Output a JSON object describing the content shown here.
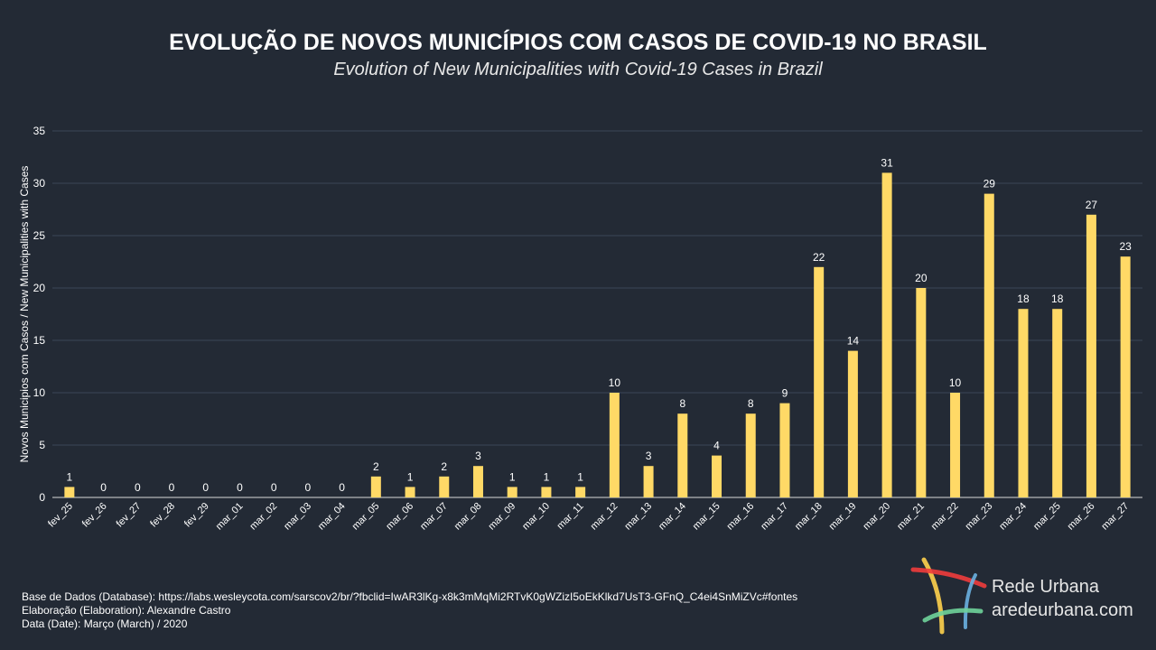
{
  "title": "EVOLUÇÃO DE NOVOS MUNICÍPIOS COM CASOS DE COVID-19 NO BRASIL",
  "subtitle": "Evolution of New Municipalities with Covid-19 Cases in Brazil",
  "chart_data": {
    "type": "bar",
    "ylabel": "Novos Municipios com Casos / New Municipalities with Cases",
    "xlabel": "",
    "ylim": [
      0,
      35
    ],
    "yticks": [
      0,
      5,
      10,
      15,
      20,
      25,
      30,
      35
    ],
    "grid": true,
    "bar_color": "#ffd966",
    "categories": [
      "fev_25",
      "fev_26",
      "fev_27",
      "fev_28",
      "fev_29",
      "mar_01",
      "mar_02",
      "mar_03",
      "mar_04",
      "mar_05",
      "mar_06",
      "mar_07",
      "mar_08",
      "mar_09",
      "mar_10",
      "mar_11",
      "mar_12",
      "mar_13",
      "mar_14",
      "mar_15",
      "mar_16",
      "mar_17",
      "mar_18",
      "mar_19",
      "mar_20",
      "mar_21",
      "mar_22",
      "mar_23",
      "mar_24",
      "mar_25",
      "mar_26",
      "mar_27"
    ],
    "values": [
      1,
      0,
      0,
      0,
      0,
      0,
      0,
      0,
      0,
      2,
      1,
      2,
      3,
      1,
      1,
      1,
      10,
      3,
      8,
      4,
      8,
      9,
      22,
      14,
      31,
      20,
      10,
      29,
      18,
      18,
      27,
      23
    ]
  },
  "footer": {
    "database": "Base de Dados (Database):  https://labs.wesleycota.com/sarscov2/br/?fbclid=IwAR3lKg-x8k3mMqMi2RTvK0gWZizI5oEkKlkd7UsT3-GFnQ_C4ei4SnMiZVc#fontes",
    "elaboration": "Elaboração (Elaboration):  Alexandre Castro",
    "date": "Data (Date): Março (March) / 2020"
  },
  "logo": {
    "name": "Rede Urbana",
    "url": "aredeurbana.com"
  }
}
